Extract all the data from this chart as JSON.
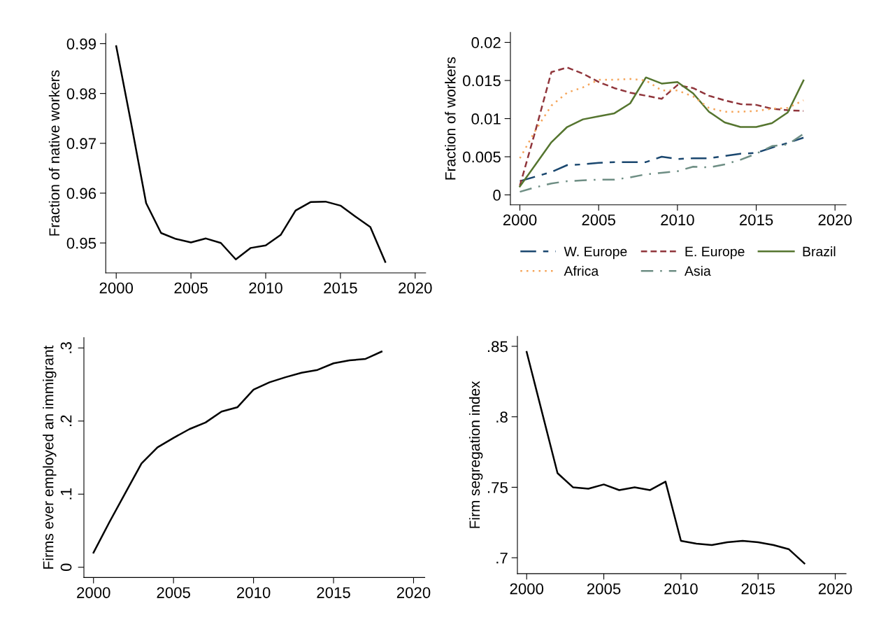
{
  "chart_data": [
    {
      "type": "line",
      "ylabel": "Fraction of native workers",
      "x": [
        2000,
        2001,
        2002,
        2003,
        2004,
        2005,
        2006,
        2007,
        2008,
        2009,
        2010,
        2011,
        2012,
        2013,
        2014,
        2015,
        2016,
        2017,
        2018
      ],
      "series": [
        {
          "color": "#000000",
          "line_style": "solid",
          "values": [
            0.9895,
            0.974,
            0.958,
            0.952,
            0.9508,
            0.9501,
            0.9509,
            0.95,
            0.9467,
            0.949,
            0.9495,
            0.9516,
            0.9565,
            0.9582,
            0.9583,
            0.9575,
            0.9553,
            0.9532,
            0.9462
          ]
        }
      ],
      "xlim": [
        1999.3,
        2020.7
      ],
      "xticks": [
        2000,
        2005,
        2010,
        2015,
        2020
      ],
      "ylim": [
        0.944,
        0.992
      ],
      "yticks": [
        {
          "value": 0.95,
          "label": "0.95"
        },
        {
          "value": 0.96,
          "label": "0.96"
        },
        {
          "value": 0.97,
          "label": "0.97"
        },
        {
          "value": 0.98,
          "label": "0.98"
        },
        {
          "value": 0.99,
          "label": "0.99"
        }
      ],
      "grid": false,
      "legend": false
    },
    {
      "type": "line",
      "ylabel": "Fraction of workers",
      "x": [
        2000,
        2001,
        2002,
        2003,
        2004,
        2005,
        2006,
        2007,
        2008,
        2009,
        2010,
        2011,
        2012,
        2013,
        2014,
        2015,
        2016,
        2017,
        2018
      ],
      "series": [
        {
          "name": "W. Europe",
          "color": "#1a476f",
          "line_style": "longdash",
          "values": [
            0.0018,
            0.0024,
            0.003,
            0.0039,
            0.004,
            0.0042,
            0.0043,
            0.0043,
            0.0043,
            0.005,
            0.0047,
            0.0048,
            0.0048,
            0.0051,
            0.0054,
            0.0055,
            0.0062,
            0.0068,
            0.0075
          ]
        },
        {
          "name": "E. Europe",
          "color": "#90353b",
          "line_style": "dashed",
          "values": [
            0.0012,
            0.0085,
            0.0161,
            0.0167,
            0.0159,
            0.0148,
            0.014,
            0.0134,
            0.013,
            0.0126,
            0.0144,
            0.014,
            0.013,
            0.0124,
            0.0119,
            0.0118,
            0.0113,
            0.0111,
            0.011
          ]
        },
        {
          "name": "Brazil",
          "color": "#55752f",
          "line_style": "solid",
          "values": [
            0.0011,
            0.004,
            0.0069,
            0.0089,
            0.0099,
            0.0103,
            0.0107,
            0.012,
            0.0154,
            0.0146,
            0.0148,
            0.0133,
            0.0109,
            0.0095,
            0.0089,
            0.0089,
            0.0094,
            0.0108,
            0.015
          ]
        },
        {
          "name": "Africa",
          "color": "#f5a55a",
          "line_style": "dotted",
          "values": [
            0.0048,
            0.0085,
            0.0117,
            0.0134,
            0.0141,
            0.0151,
            0.0151,
            0.0152,
            0.015,
            0.0137,
            0.0137,
            0.0129,
            0.0114,
            0.0109,
            0.0109,
            0.011,
            0.0113,
            0.0114,
            0.0124
          ]
        },
        {
          "name": "Asia",
          "color": "#6e8e84",
          "line_style": "dashdot",
          "values": [
            0.0004,
            0.001,
            0.0015,
            0.0018,
            0.0019,
            0.002,
            0.002,
            0.0023,
            0.0027,
            0.0029,
            0.0031,
            0.0037,
            0.0036,
            0.004,
            0.0046,
            0.0054,
            0.0064,
            0.0066,
            0.008
          ]
        }
      ],
      "xlim": [
        1999.4,
        2020.7
      ],
      "xticks": [
        2000,
        2005,
        2010,
        2015,
        2020
      ],
      "ylim": [
        -0.0013,
        0.0213
      ],
      "yticks": [
        0,
        0.005,
        0.01,
        0.015,
        0.02
      ],
      "grid": false,
      "legend": "bottom"
    },
    {
      "type": "line",
      "ylabel": "Firms ever employed an immigrant",
      "x": [
        2000,
        2001,
        2002,
        2003,
        2004,
        2005,
        2006,
        2007,
        2008,
        2009,
        2010,
        2011,
        2012,
        2013,
        2014,
        2015,
        2016,
        2017,
        2018
      ],
      "series": [
        {
          "color": "#000000",
          "line_style": "solid",
          "values": [
            0.02,
            0.062,
            0.102,
            0.142,
            0.164,
            0.177,
            0.189,
            0.198,
            0.213,
            0.219,
            0.243,
            0.253,
            0.26,
            0.266,
            0.27,
            0.279,
            0.283,
            0.285,
            0.295
          ]
        }
      ],
      "xlim": [
        1999.4,
        2020.7
      ],
      "xticks": [
        2000,
        2005,
        2010,
        2015,
        2020
      ],
      "ylim": [
        -0.014,
        0.314
      ],
      "yticks": [
        0,
        {
          "value": 0.1,
          "label": ".1"
        },
        {
          "value": 0.2,
          "label": ".2"
        },
        {
          "value": 0.3,
          "label": ".3"
        }
      ],
      "grid": false,
      "legend": false
    },
    {
      "type": "line",
      "ylabel": "Firm segregation index",
      "x": [
        2000,
        2001,
        2002,
        2003,
        2004,
        2005,
        2006,
        2007,
        2008,
        2009,
        2010,
        2011,
        2012,
        2013,
        2014,
        2015,
        2016,
        2017,
        2018
      ],
      "series": [
        {
          "color": "#000000",
          "line_style": "solid",
          "values": [
            0.846,
            0.803,
            0.76,
            0.75,
            0.749,
            0.752,
            0.748,
            0.75,
            0.748,
            0.754,
            0.712,
            0.71,
            0.709,
            0.711,
            0.712,
            0.711,
            0.709,
            0.706,
            0.696
          ]
        }
      ],
      "xlim": [
        1999.4,
        2020.7
      ],
      "xticks": [
        2000,
        2005,
        2010,
        2015,
        2020
      ],
      "ylim": [
        0.6887,
        0.857
      ],
      "yticks": [
        {
          "value": 0.7,
          "label": ".7"
        },
        {
          "value": 0.75,
          "label": ".75"
        },
        {
          "value": 0.8,
          "label": ".8"
        },
        {
          "value": 0.85,
          "label": ".85"
        }
      ],
      "grid": false,
      "legend": false
    }
  ]
}
